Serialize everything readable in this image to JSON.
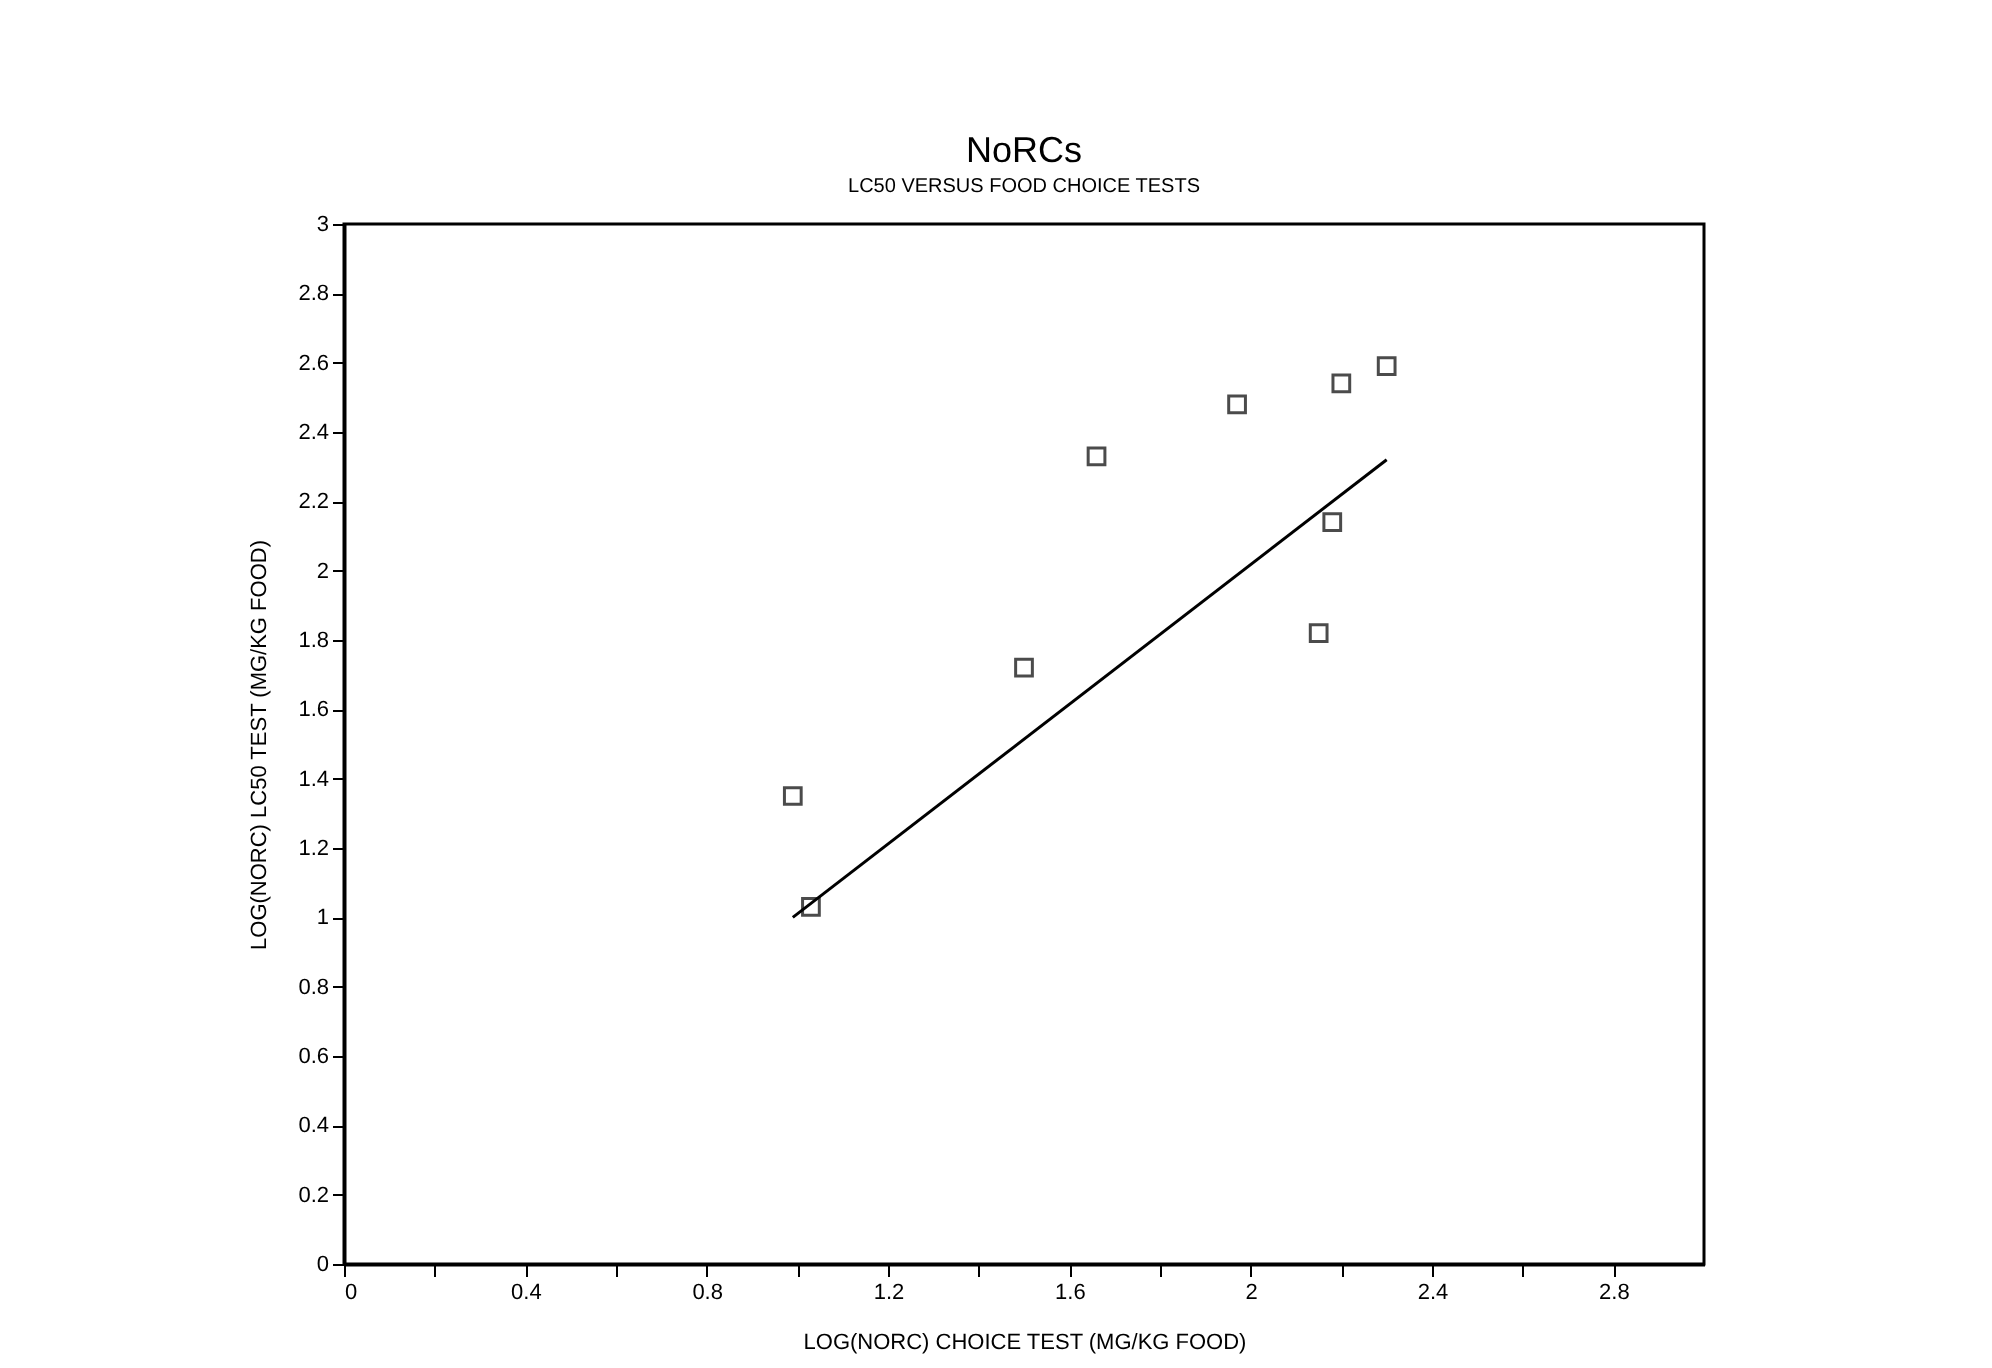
{
  "chart_data": {
    "type": "scatter",
    "title": "NoRCs",
    "subtitle": "LC50 VERSUS FOOD CHOICE TESTS",
    "xlabel": "LOG(NORC) CHOICE TEST (MG/KG FOOD)",
    "ylabel": "LOG(NORC) LC50 TEST (MG/KG FOOD)",
    "series": [
      {
        "type": "scatter",
        "marker": "square",
        "color": "#000000",
        "x": [
          0.99,
          1.03,
          1.5,
          1.66,
          1.97,
          2.15,
          2.18,
          2.2,
          2.3
        ],
        "values": [
          1.35,
          1.03,
          1.72,
          2.33,
          2.48,
          1.82,
          2.14,
          2.54,
          2.59
        ]
      },
      {
        "type": "line",
        "color": "#000000",
        "x": [
          0.99,
          2.3
        ],
        "values": [
          1.0,
          2.32
        ]
      }
    ],
    "xlim": [
      0,
      3
    ],
    "ylim": [
      0,
      3
    ],
    "xticks": [
      0,
      {
        "value": 0.2,
        "label": null
      },
      0.4,
      {
        "value": 0.6,
        "label": null
      },
      0.8,
      {
        "value": 1.0,
        "label": null
      },
      1.2,
      {
        "value": 1.4,
        "label": null
      },
      1.6,
      {
        "value": 1.8,
        "label": null
      },
      2,
      {
        "value": 2.2,
        "label": null
      },
      2.4,
      {
        "value": 2.6,
        "label": null
      },
      2.8
    ],
    "yticks": [
      0,
      0.2,
      0.4,
      0.6,
      0.8,
      1,
      1.2,
      1.4,
      1.6,
      1.8,
      2,
      2.2,
      2.4,
      2.6,
      2.8,
      3
    ],
    "line_style": "solid",
    "grid": false
  }
}
